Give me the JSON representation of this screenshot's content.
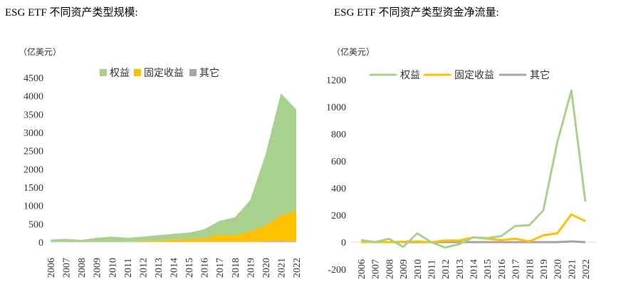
{
  "chart_data": [
    {
      "type": "area",
      "stacked": true,
      "title": "ESG ETF 不同资产类型规模:",
      "unit": "（亿美元）",
      "categories": [
        "2006",
        "2007",
        "2008",
        "2009",
        "2010",
        "2011",
        "2012",
        "2013",
        "2014",
        "2015",
        "2016",
        "2017",
        "2018",
        "2019",
        "2020",
        "2021",
        "2022"
      ],
      "series": [
        {
          "name": "权益",
          "color": "#a9d18e",
          "values": [
            70,
            90,
            60,
            115,
            140,
            110,
            120,
            150,
            160,
            180,
            240,
            380,
            490,
            860,
            1940,
            3340,
            2770
          ]
        },
        {
          "name": "固定收益",
          "color": "#ffc000",
          "values": [
            0,
            0,
            0,
            2,
            5,
            5,
            25,
            35,
            65,
            75,
            105,
            190,
            180,
            280,
            440,
            700,
            840
          ]
        },
        {
          "name": "其它",
          "color": "#a5a5a5",
          "values": [
            0,
            0,
            0,
            3,
            5,
            5,
            5,
            5,
            5,
            5,
            5,
            10,
            10,
            10,
            20,
            30,
            20
          ]
        }
      ],
      "ylim": [
        0,
        4500
      ],
      "yticks": [
        0,
        500,
        1000,
        1500,
        2000,
        2500,
        3000,
        3500,
        4000,
        4500
      ],
      "legend": "top",
      "grid": false
    },
    {
      "type": "line",
      "title": "ESG ETF 不同资产类型资金净流量:",
      "unit": "（亿美元）",
      "categories": [
        "2006",
        "2007",
        "2008",
        "2009",
        "2010",
        "2011",
        "2012",
        "2013",
        "2014",
        "2015",
        "2016",
        "2017",
        "2018",
        "2019",
        "2020",
        "2021",
        "2022"
      ],
      "series": [
        {
          "name": "权益",
          "color": "#a9d18e",
          "values": [
            15,
            0,
            25,
            -35,
            65,
            0,
            -40,
            -15,
            35,
            30,
            45,
            120,
            125,
            235,
            740,
            1120,
            300
          ]
        },
        {
          "name": "固定收益",
          "color": "#ffc000",
          "values": [
            0,
            0,
            0,
            3,
            5,
            0,
            12,
            12,
            35,
            25,
            15,
            25,
            5,
            50,
            65,
            205,
            155
          ]
        },
        {
          "name": "其它",
          "color": "#a5a5a5",
          "values": [
            0,
            0,
            0,
            0,
            0,
            0,
            0,
            0,
            0,
            0,
            0,
            0,
            0,
            0,
            0,
            5,
            0
          ]
        }
      ],
      "ylim": [
        -200,
        1200
      ],
      "yticks": [
        -200,
        0,
        200,
        400,
        600,
        800,
        1000,
        1200
      ],
      "legend": "top",
      "grid": false
    }
  ]
}
